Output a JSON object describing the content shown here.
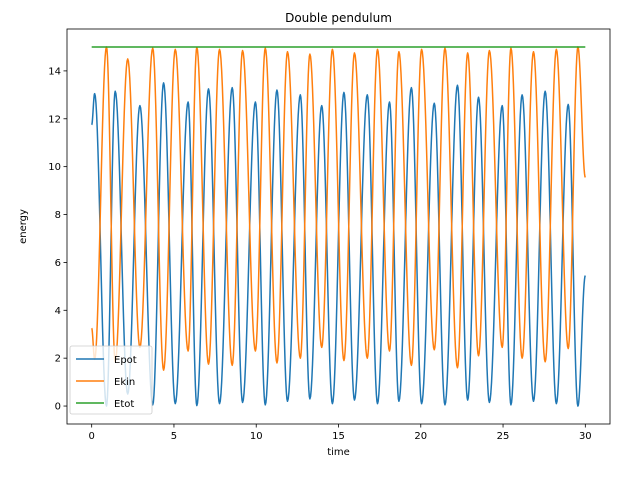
{
  "chart_data": {
    "type": "line",
    "title": "Double pendulum",
    "xlabel": "time",
    "ylabel": "energy",
    "xlim": [
      -1.5,
      31.5
    ],
    "ylim": [
      -0.75,
      15.75
    ],
    "xticks": [
      0,
      5,
      10,
      15,
      20,
      25,
      30
    ],
    "yticks": [
      0,
      2,
      4,
      6,
      8,
      10,
      12,
      14
    ],
    "grid": false,
    "legend_position": "lower-left",
    "total_energy": 15.0,
    "duration": 30,
    "series": [
      {
        "name": "Epot",
        "color": "#1f77b4",
        "x": [
          0.0,
          0.18,
          0.9,
          1.43,
          2.19,
          2.93,
          3.71,
          4.37,
          5.08,
          5.86,
          6.39,
          7.1,
          7.77,
          8.54,
          9.17,
          9.95,
          10.55,
          11.26,
          11.9,
          12.68,
          13.26,
          13.98,
          14.63,
          15.33,
          15.97,
          16.75,
          17.37,
          18.1,
          18.67,
          19.43,
          20.05,
          20.82,
          21.47,
          22.23,
          22.85,
          23.51,
          24.17,
          24.95,
          25.48,
          26.16,
          26.85,
          27.56,
          28.24,
          28.96,
          29.55,
          30.0
        ],
        "y": [
          11.75,
          13.05,
          0.0,
          13.15,
          0.5,
          12.55,
          0.05,
          13.5,
          0.1,
          12.7,
          0.02,
          13.25,
          0.1,
          13.3,
          0.15,
          12.7,
          0.05,
          13.2,
          0.2,
          13.0,
          0.3,
          12.55,
          0.1,
          13.1,
          0.25,
          13.0,
          0.1,
          12.7,
          0.2,
          13.3,
          0.1,
          12.65,
          0.05,
          13.4,
          0.25,
          12.9,
          0.15,
          12.55,
          0.05,
          13.0,
          0.2,
          13.15,
          0.1,
          12.6,
          0.0,
          5.45
        ]
      },
      {
        "name": "Ekin",
        "color": "#ff7f0e",
        "x": [
          0.0,
          0.18,
          0.9,
          1.43,
          2.19,
          2.93,
          3.71,
          4.37,
          5.08,
          5.86,
          6.39,
          7.1,
          7.77,
          8.54,
          9.17,
          9.95,
          10.55,
          11.26,
          11.9,
          12.68,
          13.26,
          13.98,
          14.63,
          15.33,
          15.97,
          16.75,
          17.37,
          18.1,
          18.67,
          19.43,
          20.05,
          20.82,
          21.47,
          22.23,
          22.85,
          23.51,
          24.17,
          24.95,
          25.48,
          26.16,
          26.85,
          27.56,
          28.24,
          28.96,
          29.55,
          30.0
        ],
        "y": [
          3.25,
          1.95,
          15.0,
          1.85,
          14.5,
          2.45,
          14.95,
          1.5,
          14.9,
          2.3,
          14.98,
          1.75,
          14.9,
          1.7,
          14.85,
          2.3,
          14.95,
          1.8,
          14.8,
          2.0,
          14.7,
          2.45,
          14.9,
          1.9,
          14.75,
          2.0,
          14.9,
          2.3,
          14.8,
          1.7,
          14.9,
          2.35,
          14.95,
          1.6,
          14.75,
          2.1,
          14.85,
          2.45,
          14.95,
          2.0,
          14.8,
          1.85,
          14.9,
          2.4,
          15.0,
          9.55
        ]
      },
      {
        "name": "Etot",
        "color": "#2ca02c",
        "x": [
          0,
          30
        ],
        "y": [
          15.0,
          15.0
        ]
      }
    ]
  }
}
